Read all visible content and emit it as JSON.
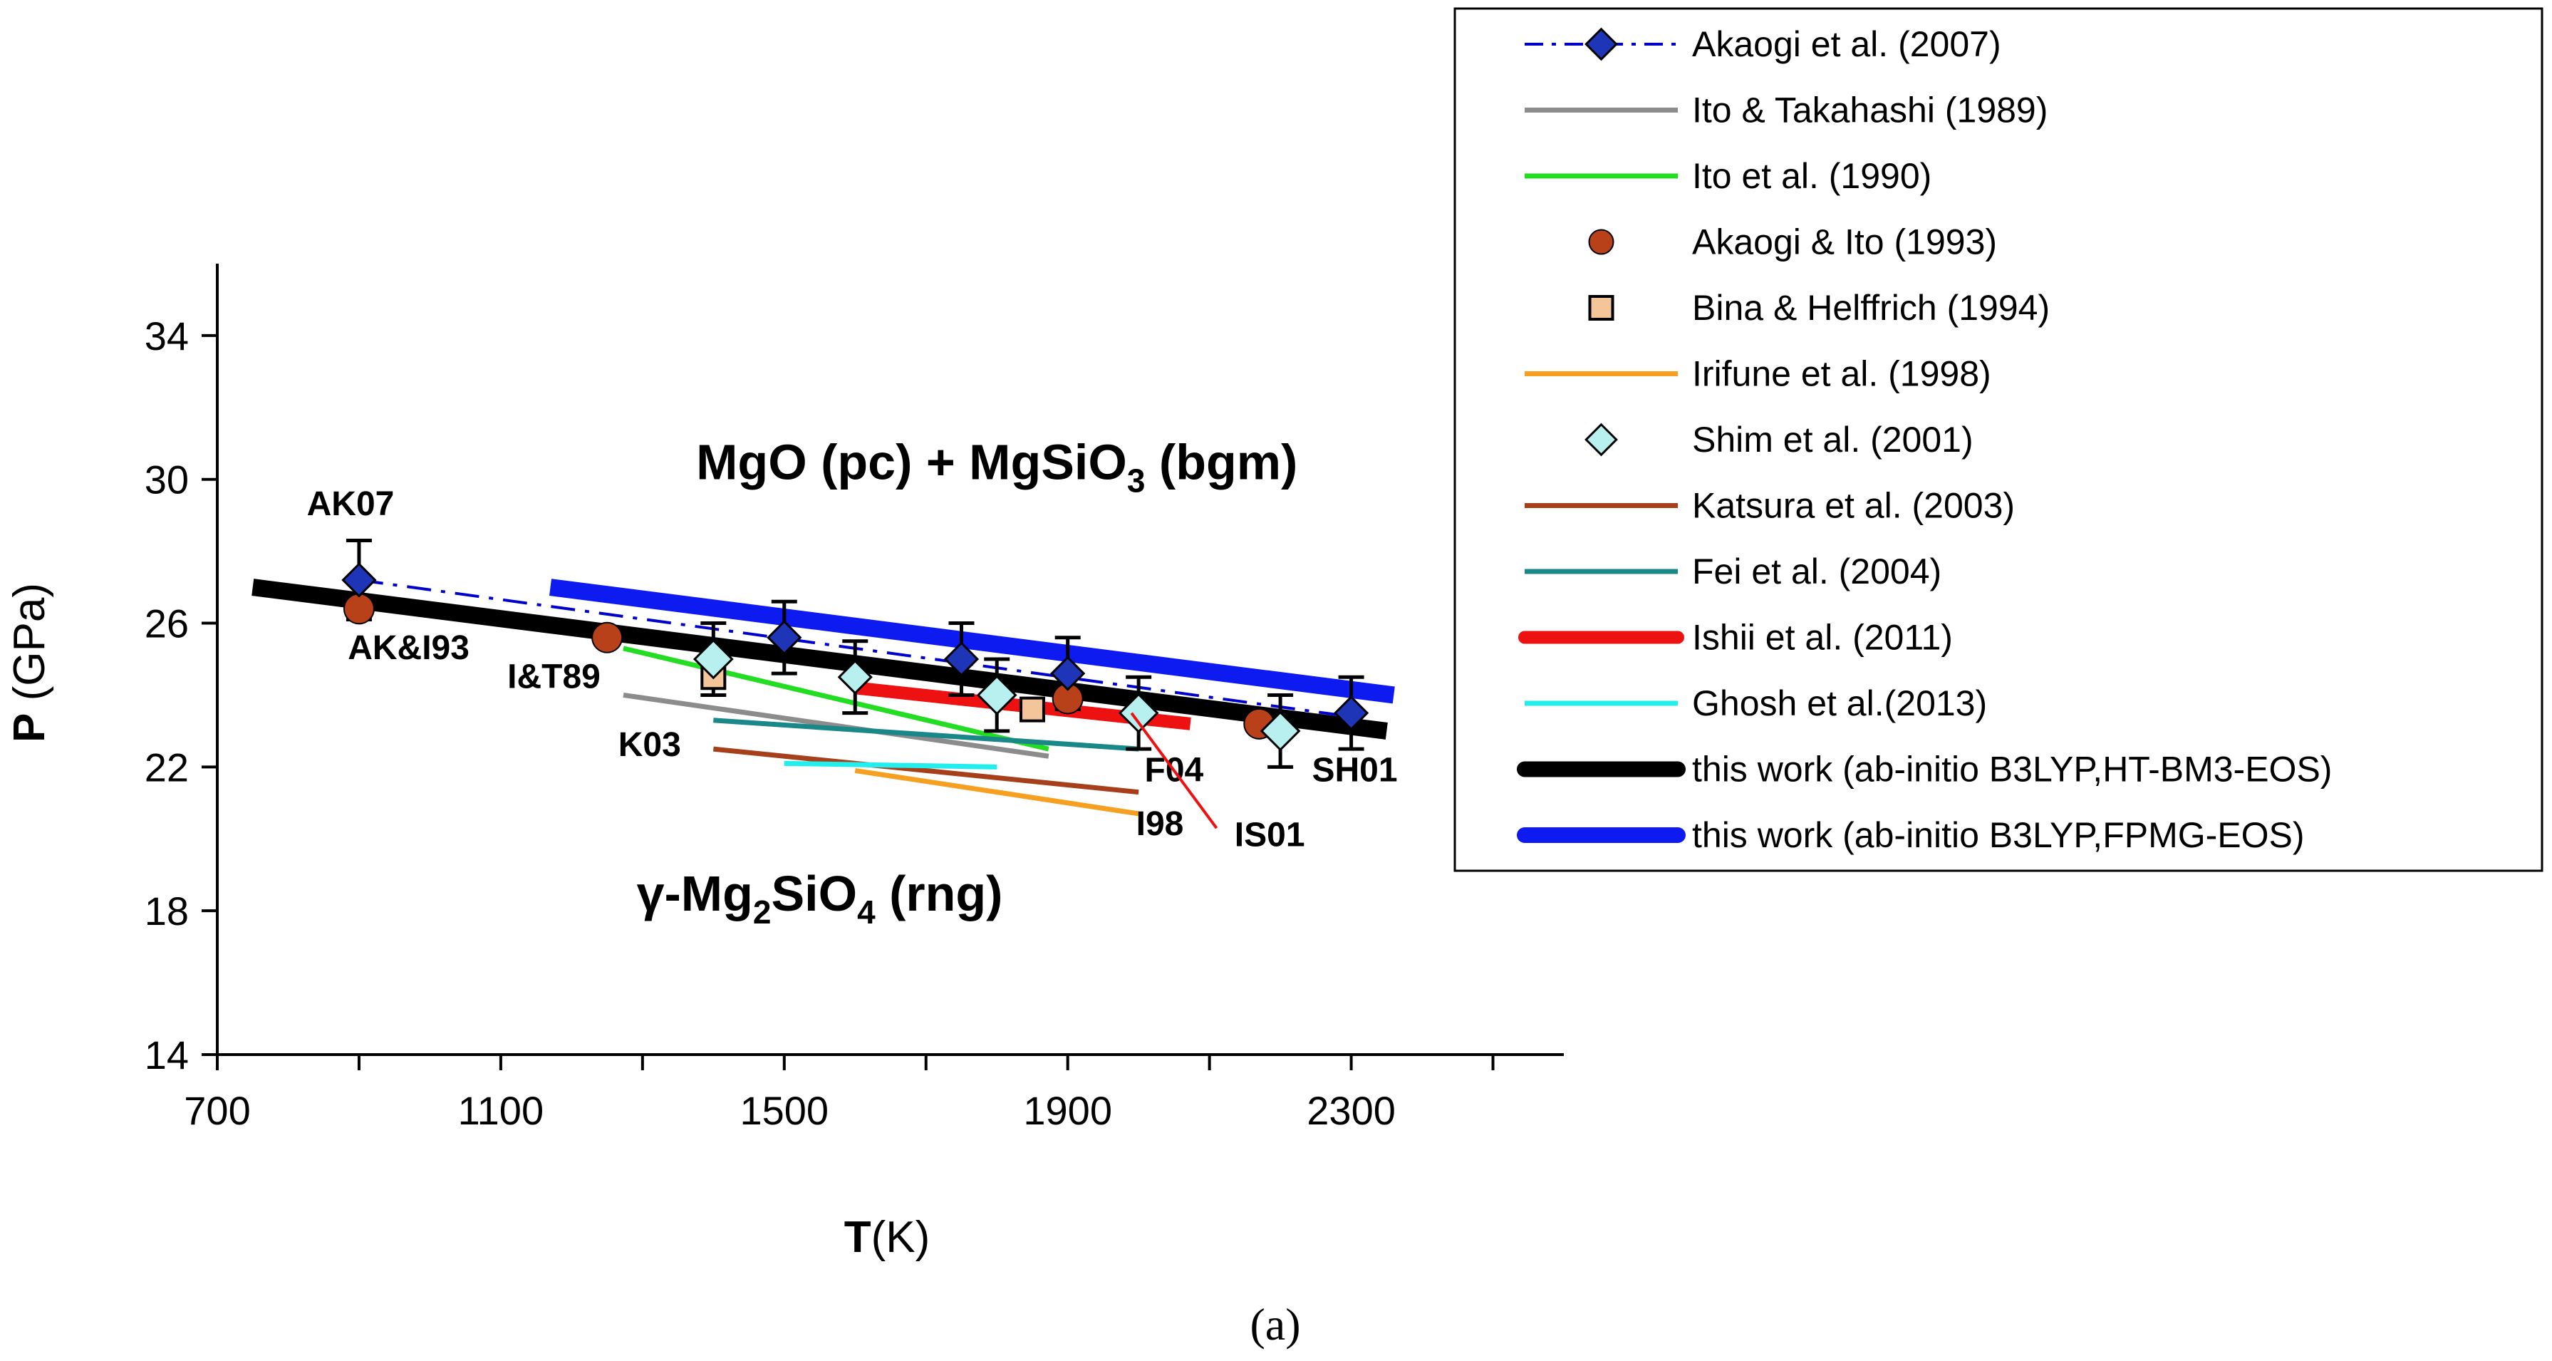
{
  "chart_data": {
    "type": "line",
    "xlabel": {
      "bold": "T",
      "rest": "(K)"
    },
    "ylabel": {
      "bold": "P",
      "rest": " (GPa)"
    },
    "xlim": [
      700,
      2600
    ],
    "ylim": [
      14,
      36
    ],
    "xticks": [
      700,
      1100,
      1500,
      1900,
      2300
    ],
    "yticks": [
      14,
      18,
      22,
      26,
      30,
      34
    ],
    "grid": false,
    "caption": "(a)",
    "regions": [
      {
        "text": "MgO (pc) + MgSiO",
        "sub": "3",
        "tail": " (bgm)",
        "x": 1800,
        "y": 30.0
      },
      {
        "text": "γ-Mg",
        "sub": "2",
        "mid": "SiO",
        "sub2": "4",
        "tail": " (rng)",
        "x": 1550,
        "y": 18.0
      }
    ],
    "series": [
      {
        "name": "Akaogi et al. (2007)",
        "kind": "dashdot-marker",
        "color": "#0000CC",
        "marker": "diamond",
        "marker_color": "#1F35B8",
        "line_width": 4,
        "x": [
          900,
          2300
        ],
        "y": [
          27.2,
          23.4
        ]
      },
      {
        "name": "Ito & Takahashi (1989)",
        "kind": "line",
        "color": "#8C8C8C",
        "line_width": 7,
        "x": [
          1273,
          1873
        ],
        "y": [
          24.0,
          22.3
        ]
      },
      {
        "name": "Ito et al. (1990)",
        "kind": "line",
        "color": "#22DD22",
        "line_width": 7,
        "x": [
          1273,
          1873
        ],
        "y": [
          25.3,
          22.5
        ]
      },
      {
        "name": "Akaogi & Ito (1993)",
        "kind": "marker",
        "color": "#B8411A",
        "marker": "circle",
        "x": [
          900,
          1250,
          1900,
          2170
        ],
        "y": [
          26.4,
          25.6,
          23.9,
          23.2
        ]
      },
      {
        "name": "Bina & Helffrich (1994)",
        "kind": "marker",
        "color": "#F5C59A",
        "marker": "square",
        "x": [
          1400,
          1850
        ],
        "y": [
          24.5,
          23.6
        ]
      },
      {
        "name": "Irifune et al. (1998)",
        "kind": "line",
        "color": "#F5A020",
        "line_width": 7,
        "x": [
          1600,
          2000
        ],
        "y": [
          21.9,
          20.7
        ]
      },
      {
        "name": "Shim et al. (2001)",
        "kind": "marker",
        "color": "#B8F0F0",
        "marker": "diamond",
        "x": [
          1400,
          1800,
          2000,
          2200
        ],
        "y": [
          25.0,
          24.0,
          23.5,
          23.0
        ]
      },
      {
        "name": "Katsura et al. (2003)",
        "kind": "line",
        "color": "#A6401A",
        "line_width": 7,
        "x": [
          1400,
          2000
        ],
        "y": [
          22.5,
          21.3
        ]
      },
      {
        "name": "Fei et al. (2004)",
        "kind": "line",
        "color": "#1A8888",
        "line_width": 7,
        "x": [
          1400,
          2000
        ],
        "y": [
          23.3,
          22.5
        ]
      },
      {
        "name": "Ishii et al. (2011)",
        "kind": "line",
        "color": "#EE1111",
        "line_width": 18,
        "x": [
          1600,
          2073
        ],
        "y": [
          24.2,
          23.2
        ]
      },
      {
        "name": "Ghosh et al.(2013)",
        "kind": "line",
        "color": "#22EEEE",
        "line_width": 7,
        "x": [
          1500,
          1800
        ],
        "y": [
          22.1,
          22.0
        ]
      },
      {
        "name": "this work (ab-initio B3LYP,HT-BM3-EOS)",
        "kind": "line",
        "color": "#000000",
        "line_width": 24,
        "x": [
          750,
          2350
        ],
        "y": [
          27.0,
          23.0
        ]
      },
      {
        "name": "this work (ab-initio B3LYP,FPMG-EOS)",
        "kind": "line",
        "color": "#0D1AF0",
        "line_width": 24,
        "x": [
          1170,
          2360
        ],
        "y": [
          27.0,
          24.0
        ]
      }
    ],
    "error_bars": [
      {
        "x": 900,
        "y": 27.2,
        "err": 1.1
      },
      {
        "x": 1500,
        "y": 25.6,
        "err": 1.0
      },
      {
        "x": 1600,
        "y": 24.5,
        "err": 1.0
      },
      {
        "x": 1400,
        "y": 25.0,
        "err": 1.0
      },
      {
        "x": 1750,
        "y": 25.0,
        "err": 1.0
      },
      {
        "x": 1800,
        "y": 24.0,
        "err": 1.0
      },
      {
        "x": 1900,
        "y": 24.6,
        "err": 1.0
      },
      {
        "x": 2000,
        "y": 23.5,
        "err": 1.0
      },
      {
        "x": 2200,
        "y": 23.0,
        "err": 1.0
      },
      {
        "x": 2300,
        "y": 23.5,
        "err": 1.0
      }
    ],
    "extra_markers": [
      {
        "series": "Akaogi et al. (2007)",
        "marker": "diamond",
        "color": "#1F35B8",
        "x": [
          900,
          1500,
          1750,
          1900,
          2300
        ],
        "y": [
          27.2,
          25.6,
          25.0,
          24.6,
          23.5
        ]
      },
      {
        "series": "Shim et al. (2001)",
        "marker": "diamond",
        "color": "#B8F0F0",
        "x": [
          1600
        ],
        "y": [
          24.5
        ]
      }
    ],
    "annotations": [
      {
        "text": "AK07",
        "x": 888,
        "y": 29.0
      },
      {
        "text": "AK&I93",
        "x": 970,
        "y": 25.0
      },
      {
        "text": "I&T89",
        "x": 1175,
        "y": 24.2
      },
      {
        "text": "K03",
        "x": 1310,
        "y": 22.3
      },
      {
        "text": "F04",
        "x": 2050,
        "y": 21.6
      },
      {
        "text": "I98",
        "x": 2030,
        "y": 20.1
      },
      {
        "text": "IS01",
        "x": 2185,
        "y": 19.8
      },
      {
        "text": "SH01",
        "x": 2305,
        "y": 21.6
      }
    ],
    "legend_position": "top-right"
  }
}
